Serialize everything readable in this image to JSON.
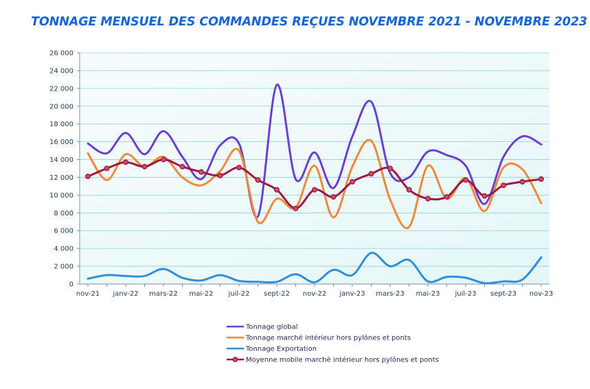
{
  "chart_data": {
    "type": "line",
    "title": "TONNAGE MENSUEL DES COMMANDES REÇUES NOVEMBRE 2021 - NOVEMBRE 2023",
    "xlabel": "",
    "ylabel": "",
    "ylim": [
      0,
      26000
    ],
    "y_ticks": [
      0,
      2000,
      4000,
      6000,
      8000,
      10000,
      12000,
      14000,
      16000,
      18000,
      20000,
      22000,
      24000,
      26000
    ],
    "y_tick_labels": [
      "0",
      "2 000",
      "4 000",
      "6 000",
      "8 000",
      "10 000",
      "12 000",
      "14 000",
      "16 000",
      "18 000",
      "20 000",
      "22 000",
      "24 000",
      "26 000"
    ],
    "categories": [
      "nov-21",
      "déc-21",
      "janv-22",
      "févr-22",
      "mars-22",
      "avr-22",
      "mai-22",
      "juin-22",
      "juil-22",
      "août-22",
      "sept-22",
      "oct-22",
      "nov-22",
      "déc-22",
      "janv-23",
      "févr-23",
      "mars-23",
      "avr-23",
      "mai-23",
      "juin-23",
      "juil-23",
      "août-23",
      "sept-23",
      "oct-23",
      "nov-23"
    ],
    "x_tick_labels": [
      "nov-21",
      "janv-22",
      "mars-22",
      "mai-22",
      "juil-22",
      "sept-22",
      "nov-22",
      "janv-23",
      "mars-23",
      "mai-23",
      "juil-23",
      "sept-23",
      "nov-23"
    ],
    "grid": true,
    "legend_position": "bottom",
    "series": [
      {
        "name": "Tonnage global",
        "color": "#6a3fd4",
        "markers": false,
        "values": [
          15800,
          14700,
          17000,
          14600,
          17200,
          14300,
          11800,
          15600,
          15800,
          7600,
          22400,
          11800,
          14800,
          10800,
          16600,
          20500,
          12500,
          12000,
          14900,
          14500,
          13300,
          9000,
          14300,
          16600,
          15700
        ]
      },
      {
        "name": "Tonnage marché intérieur hors pylônes et ponts",
        "color": "#f0893a",
        "markers": false,
        "values": [
          14700,
          11700,
          14600,
          13200,
          14300,
          12000,
          11100,
          12700,
          15000,
          7000,
          9600,
          8600,
          13300,
          7500,
          13200,
          16100,
          9500,
          6400,
          13300,
          9600,
          11900,
          8200,
          13100,
          12900,
          9100
        ]
      },
      {
        "name": "Tonnage Exportation",
        "color": "#2f8fd8",
        "markers": false,
        "values": [
          600,
          1000,
          900,
          900,
          1700,
          700,
          400,
          1000,
          350,
          250,
          250,
          1100,
          200,
          1600,
          1000,
          3500,
          2000,
          2700,
          300,
          800,
          700,
          100,
          300,
          500,
          3000
        ]
      },
      {
        "name": "Moyenne mobile marché intérieur hors pylônes et ponts",
        "color": "#9b1a42",
        "markers": true,
        "values": [
          12100,
          13000,
          13700,
          13200,
          14000,
          13200,
          12600,
          12200,
          13100,
          11700,
          10600,
          8500,
          10600,
          9800,
          11500,
          12400,
          13000,
          10600,
          9600,
          9800,
          11700,
          9900,
          11100,
          11500,
          11800
        ]
      }
    ]
  }
}
